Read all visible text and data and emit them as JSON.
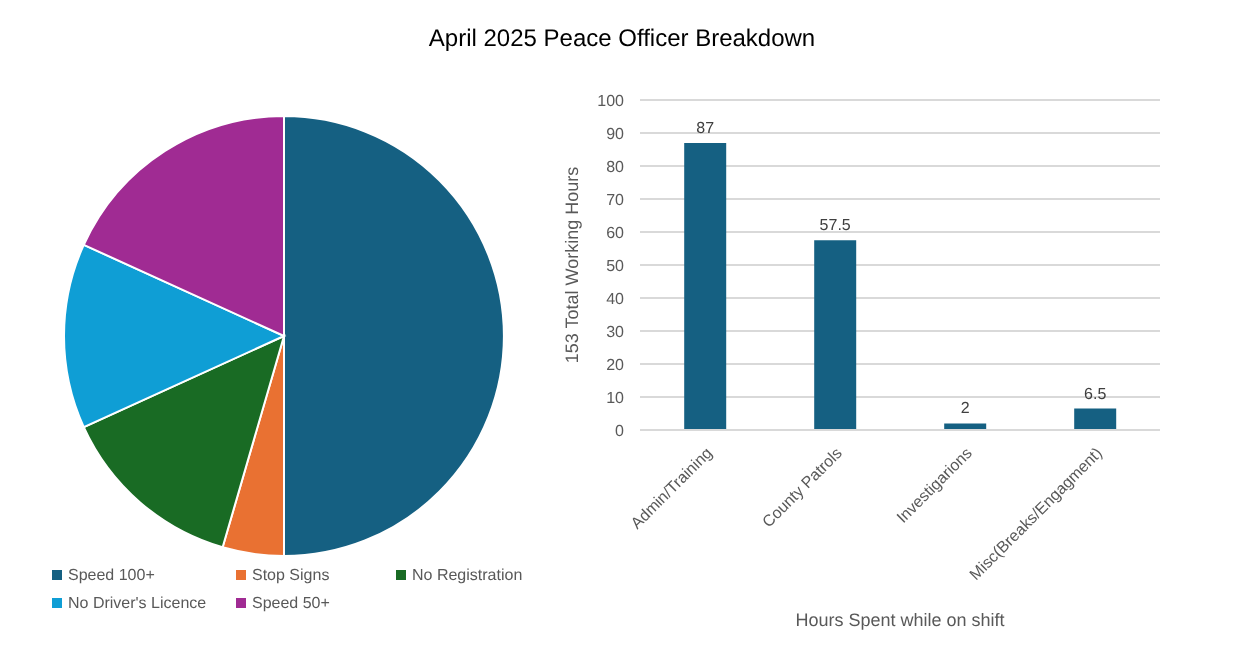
{
  "chart_data": [
    {
      "type": "pie",
      "title": "April 2025 Peace Officer Breakdown",
      "categories": [
        "Speed 100+",
        "Stop Signs",
        "No Registration",
        "No Driver's Licence",
        "Speed 50+"
      ],
      "values": [
        50,
        4.5,
        13.7,
        13.6,
        18.2
      ],
      "colors": [
        "#156082",
        "#e97132",
        "#196b24",
        "#0f9ed5",
        "#a02b93"
      ],
      "legend": "bottom"
    },
    {
      "type": "bar",
      "categories": [
        "Admin/Training",
        "County Patrols",
        "Investigarions",
        "Misc(Breaks/Engagment)"
      ],
      "values": [
        87,
        57.5,
        2,
        6.5
      ],
      "color": "#156082",
      "xlabel": "Hours Spent while on shift",
      "ylabel": "153 Total Working Hours",
      "ylim": [
        0,
        100
      ],
      "yticks": [
        0,
        10,
        20,
        30,
        40,
        50,
        60,
        70,
        80,
        90,
        100
      ],
      "grid": "y",
      "data_labels": true
    }
  ]
}
